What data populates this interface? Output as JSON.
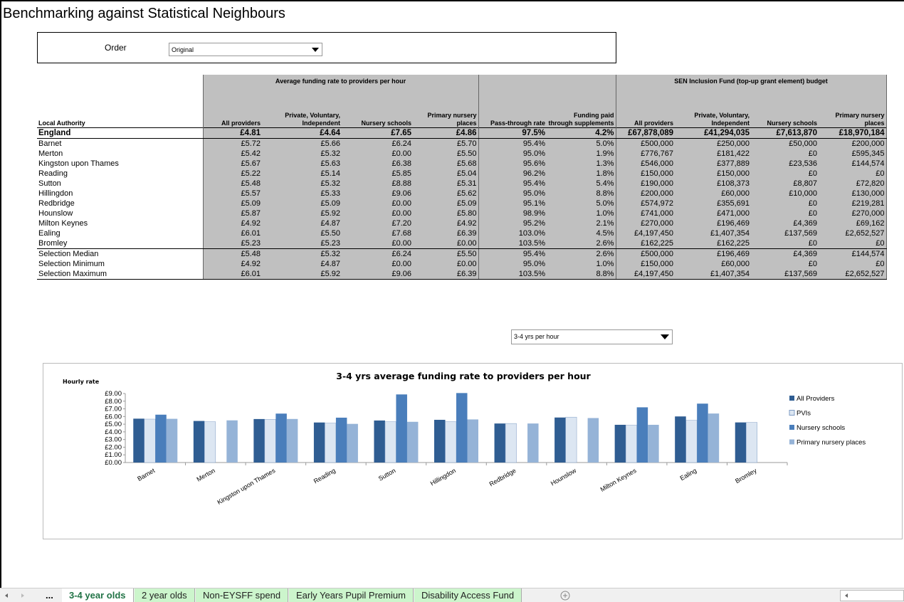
{
  "title": "Benchmarking against Statistical Neighbours",
  "order": {
    "label": "Order",
    "value": "Original"
  },
  "table": {
    "group_headers": [
      "Average funding rate to providers per hour",
      "SEN Inclusion Fund (top-up grant element) budget"
    ],
    "columns": [
      "Local Authority",
      "All providers",
      "Private, Voluntary, Independent",
      "Nursery schools",
      "Primary nursery places",
      "Pass-through rate",
      "Funding paid through supplements",
      "All providers",
      "Private, Voluntary, Independent",
      "Nursery schools",
      "Primary nursery places"
    ],
    "england": [
      "England",
      "£4.81",
      "£4.64",
      "£7.65",
      "£4.86",
      "97.5%",
      "4.2%",
      "£67,878,089",
      "£41,294,035",
      "£7,613,870",
      "£18,970,184"
    ],
    "rows": [
      [
        "Barnet",
        "£5.72",
        "£5.66",
        "£6.24",
        "£5.70",
        "95.4%",
        "5.0%",
        "£500,000",
        "£250,000",
        "£50,000",
        "£200,000"
      ],
      [
        "Merton",
        "£5.42",
        "£5.32",
        "£0.00",
        "£5.50",
        "95.0%",
        "1.9%",
        "£776,767",
        "£181,422",
        "£0",
        "£595,345"
      ],
      [
        "Kingston upon Thames",
        "£5.67",
        "£5.63",
        "£6.38",
        "£5.68",
        "95.6%",
        "1.3%",
        "£546,000",
        "£377,889",
        "£23,536",
        "£144,574"
      ],
      [
        "Reading",
        "£5.22",
        "£5.14",
        "£5.85",
        "£5.04",
        "96.2%",
        "1.8%",
        "£150,000",
        "£150,000",
        "£0",
        "£0"
      ],
      [
        "Sutton",
        "£5.48",
        "£5.32",
        "£8.88",
        "£5.31",
        "95.4%",
        "5.4%",
        "£190,000",
        "£108,373",
        "£8,807",
        "£72,820"
      ],
      [
        "Hillingdon",
        "£5.57",
        "£5.33",
        "£9.06",
        "£5.62",
        "95.0%",
        "8.8%",
        "£200,000",
        "£60,000",
        "£10,000",
        "£130,000"
      ],
      [
        "Redbridge",
        "£5.09",
        "£5.09",
        "£0.00",
        "£5.09",
        "95.1%",
        "5.0%",
        "£574,972",
        "£355,691",
        "£0",
        "£219,281"
      ],
      [
        "Hounslow",
        "£5.87",
        "£5.92",
        "£0.00",
        "£5.80",
        "98.9%",
        "1.0%",
        "£741,000",
        "£471,000",
        "£0",
        "£270,000"
      ],
      [
        "Milton Keynes",
        "£4.92",
        "£4.87",
        "£7.20",
        "£4.92",
        "95.2%",
        "2.1%",
        "£270,000",
        "£196,469",
        "£4,369",
        "£69,162"
      ],
      [
        "Ealing",
        "£6.01",
        "£5.50",
        "£7.68",
        "£6.39",
        "103.0%",
        "4.5%",
        "£4,197,450",
        "£1,407,354",
        "£137,569",
        "£2,652,527"
      ],
      [
        "Bromley",
        "£5.23",
        "£5.23",
        "£0.00",
        "£0.00",
        "103.5%",
        "2.6%",
        "£162,225",
        "£162,225",
        "£0",
        "£0"
      ]
    ],
    "summary": [
      [
        "Selection Median",
        "£5.48",
        "£5.32",
        "£6.24",
        "£5.50",
        "95.4%",
        "2.6%",
        "£500,000",
        "£196,469",
        "£4,369",
        "£144,574"
      ],
      [
        "Selection Minimum",
        "£4.92",
        "£4.87",
        "£0.00",
        "£0.00",
        "95.0%",
        "1.0%",
        "£150,000",
        "£60,000",
        "£0",
        "£0"
      ],
      [
        "Selection Maximum",
        "£6.01",
        "£5.92",
        "£9.06",
        "£6.39",
        "103.5%",
        "8.8%",
        "£4,197,450",
        "£1,407,354",
        "£137,569",
        "£2,652,527"
      ]
    ]
  },
  "chart_selector": "3-4 yrs per hour",
  "chart_data": {
    "type": "bar",
    "title": "3-4 yrs average funding rate to providers per hour",
    "y_label": "Hourly rate",
    "categories": [
      "Barnet",
      "Merton",
      "Kingston upon Thames",
      "Reading",
      "Sutton",
      "Hillingdon",
      "Redbridge",
      "Hounslow",
      "Milton Keynes",
      "Ealing",
      "Bromley"
    ],
    "series": [
      {
        "name": "All Providers",
        "color": "#2f5d92",
        "values": [
          5.72,
          5.42,
          5.67,
          5.22,
          5.48,
          5.57,
          5.09,
          5.87,
          4.92,
          6.01,
          5.23
        ]
      },
      {
        "name": "PVIs",
        "color": "#dce6f2",
        "values": [
          5.66,
          5.32,
          5.63,
          5.14,
          5.32,
          5.33,
          5.09,
          5.92,
          4.87,
          5.5,
          5.23
        ]
      },
      {
        "name": "Nursery schools",
        "color": "#4a7ebb",
        "values": [
          6.24,
          0,
          6.38,
          5.85,
          8.88,
          9.06,
          0,
          0,
          7.2,
          7.68,
          0
        ]
      },
      {
        "name": "Primary nursery places",
        "color": "#95b3d7",
        "values": [
          5.7,
          5.5,
          5.68,
          5.04,
          5.31,
          5.62,
          5.09,
          5.8,
          4.92,
          6.39,
          0
        ]
      }
    ],
    "ylim": [
      0,
      9
    ],
    "yticks": [
      {
        "value": 0,
        "label": "£0.00"
      },
      {
        "value": 1,
        "label": "£1.00"
      },
      {
        "value": 2,
        "label": "£2.00"
      },
      {
        "value": 3,
        "label": "£3.00"
      },
      {
        "value": 4,
        "label": "£4.00"
      },
      {
        "value": 5,
        "label": "£5.00"
      },
      {
        "value": 6,
        "label": "£6.00"
      },
      {
        "value": 7,
        "label": "£7.00"
      },
      {
        "value": 8,
        "label": "£8.00"
      },
      {
        "value": 9,
        "label": "£9.00"
      }
    ],
    "legend": "right"
  },
  "tabs": {
    "overflow": "...",
    "sheets": [
      "3-4 year olds",
      "2 year olds",
      "Non-EYSFF spend",
      "Early Years Pupil Premium",
      "Disability Access Fund"
    ]
  }
}
